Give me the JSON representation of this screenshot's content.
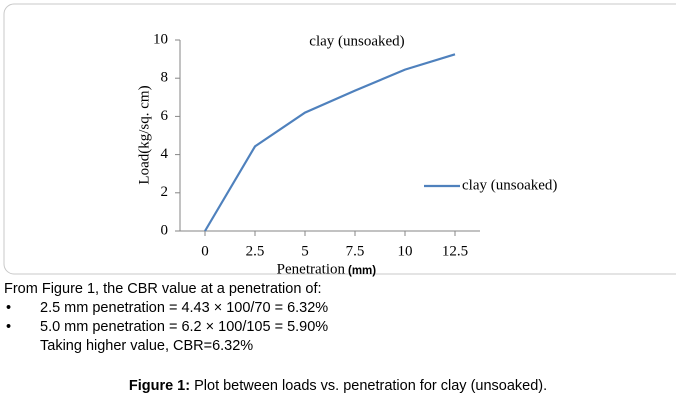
{
  "chart_data": {
    "type": "line",
    "title": "clay (unsoaked)",
    "x_label": "Penetration",
    "x_label_unit": "(mm)",
    "y_label": "Load(kg/sq. cm)",
    "x": [
      0,
      2.5,
      5,
      7.5,
      10,
      12.5
    ],
    "series": [
      {
        "name": "clay (unsoaked)",
        "color": "#4f81bd",
        "values": [
          0,
          4.43,
          6.2,
          7.35,
          8.45,
          9.25
        ]
      }
    ],
    "xlim": [
      -1.25,
      13.75
    ],
    "xticks": [
      0,
      2.5,
      5,
      7.5,
      10,
      12.5
    ],
    "ylim": [
      0,
      10
    ],
    "yticks": [
      0,
      2,
      4,
      6,
      8,
      10
    ],
    "grid": false,
    "legend": "right"
  },
  "body": {
    "intro": "From Figure 1, the CBR value at a penetration of:",
    "bullets": [
      "2.5 mm penetration = 4.43 × 100/70 = 6.32%",
      "5.0 mm penetration = 6.2 × 100/105 = 5.90%"
    ],
    "conclusion": "Taking higher value, CBR=6.32%"
  },
  "caption": {
    "label": "Figure 1:",
    "text": " Plot between loads vs. penetration for clay (unsoaked)."
  }
}
